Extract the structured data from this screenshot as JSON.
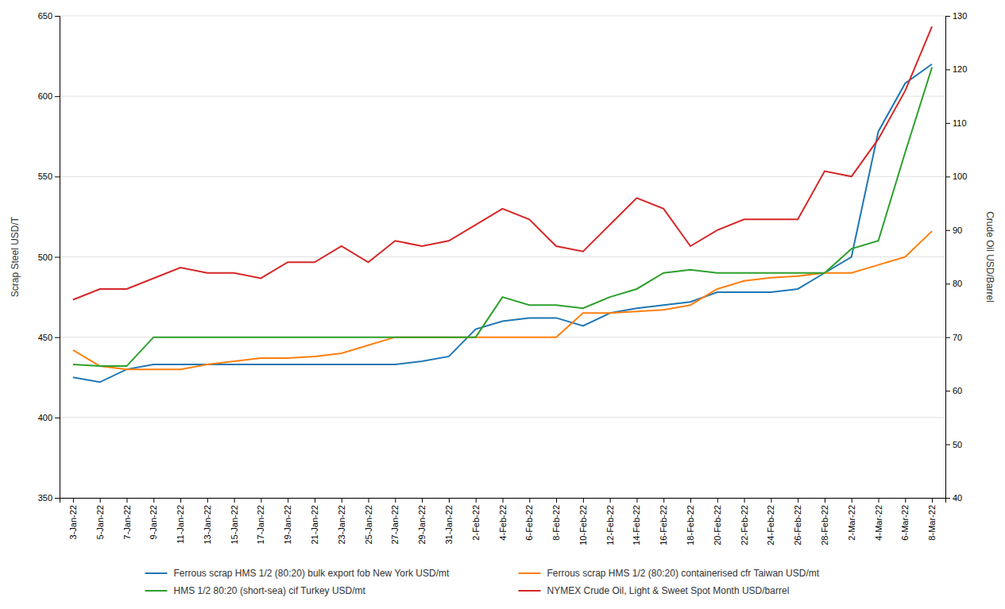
{
  "chart_data": {
    "type": "line",
    "categories": [
      "3-Jan-22",
      "5-Jan-22",
      "7-Jan-22",
      "9-Jan-22",
      "11-Jan-22",
      "13-Jan-22",
      "15-Jan-22",
      "17-Jan-22",
      "19-Jan-22",
      "21-Jan-22",
      "23-Jan-22",
      "25-Jan-22",
      "27-Jan-22",
      "29-Jan-22",
      "31-Jan-22",
      "2-Feb-22",
      "4-Feb-22",
      "6-Feb-22",
      "8-Feb-22",
      "10-Feb-22",
      "12-Feb-22",
      "14-Feb-22",
      "16-Feb-22",
      "18-Feb-22",
      "20-Feb-22",
      "22-Feb-22",
      "24-Feb-22",
      "26-Feb-22",
      "28-Feb-22",
      "2-Mar-22",
      "4-Mar-22",
      "6-Mar-22",
      "8-Mar-22"
    ],
    "series": [
      {
        "name": "Ferrous scrap HMS 1/2 (80:20) bulk export fob New York USD/mt",
        "values": [
          425,
          422,
          430,
          433,
          433,
          433,
          433,
          433,
          433,
          433,
          433,
          433,
          433,
          435,
          438,
          455,
          460,
          462,
          462,
          457,
          465,
          468,
          470,
          472,
          478,
          478,
          478,
          480,
          490,
          500,
          578,
          608,
          620
        ]
      },
      {
        "name": "Ferrous scrap HMS 1/2 (80:20) containerised cfr Taiwan USD/mt",
        "values": [
          442,
          432,
          430,
          430,
          430,
          433,
          435,
          437,
          437,
          438,
          440,
          445,
          450,
          450,
          450,
          450,
          450,
          450,
          450,
          465,
          465,
          466,
          467,
          470,
          480,
          485,
          487,
          488,
          490,
          490,
          495,
          500,
          516
        ]
      },
      {
        "name": "HMS 1/2 80:20 (short-sea) cif Turkey USD/mt",
        "values": [
          433,
          432,
          432,
          450,
          450,
          450,
          450,
          450,
          450,
          450,
          450,
          450,
          450,
          450,
          450,
          450,
          475,
          470,
          470,
          468,
          475,
          480,
          490,
          492,
          490,
          490,
          490,
          490,
          490,
          505,
          510,
          565,
          618
        ]
      },
      {
        "name": "NYMEX Crude Oil, Light & Sweet   Spot Month USD/barrel",
        "axis": "y2",
        "values": [
          77,
          79,
          79,
          81,
          83,
          82,
          82,
          81,
          84,
          84,
          87,
          84,
          88,
          87,
          88,
          91,
          94,
          92,
          87,
          86,
          91,
          96,
          94,
          87,
          90,
          92,
          92,
          92,
          101,
          100,
          107,
          116,
          128
        ]
      }
    ],
    "ylabel": "Scrap Steel USD/T",
    "y2label": "Crude Oil USD/Barrel",
    "ylim": [
      350,
      650
    ],
    "yticks": [
      350,
      400,
      450,
      500,
      550,
      600,
      650
    ],
    "y2lim": [
      40,
      130
    ],
    "y2ticks": [
      40,
      50,
      60,
      70,
      80,
      90,
      100,
      110,
      120,
      130
    ],
    "grid": true,
    "legend": "bottom"
  }
}
